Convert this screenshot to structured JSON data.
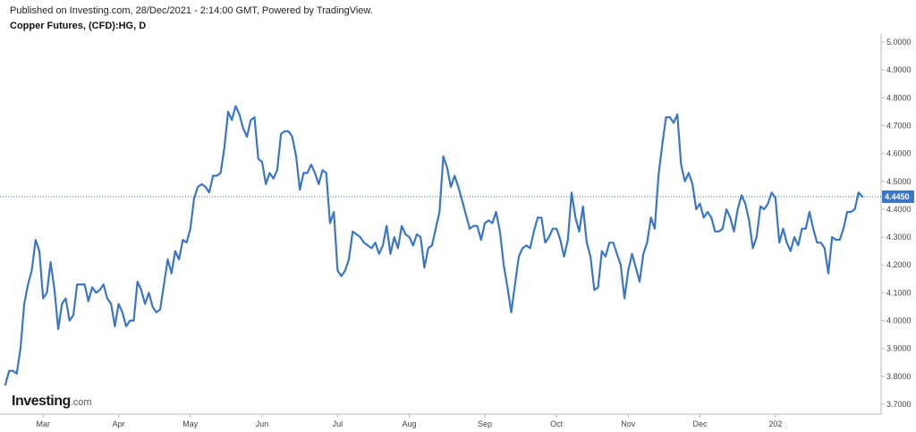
{
  "header": {
    "publisher": "Published on Investing.com, 28/Dec/2021 - 2:14:00 GMT, Powered by TradingView.",
    "instrument": "Copper Futures, (CFD):HG, D"
  },
  "logo": {
    "text": "Investing",
    "suffix": ".com"
  },
  "colors": {
    "line": "#3a76c8",
    "axis": "#b8b8b8",
    "last_label_bg": "#3a76c8"
  },
  "chart_data": {
    "type": "line",
    "title": "Copper Futures, (CFD):HG, D",
    "xlabel": "",
    "ylabel": "",
    "ylim": [
      3.65,
      5.03
    ],
    "grid": false,
    "y_ticks": [
      "5.0000",
      "4.9000",
      "4.8000",
      "4.7000",
      "4.6000",
      "4.5000",
      "4.4000",
      "4.3000",
      "4.2000",
      "4.1000",
      "4.0000",
      "3.9000",
      "3.8000",
      "3.7000"
    ],
    "x_ticks": [
      {
        "label": "Mar",
        "i": 10
      },
      {
        "label": "Apr",
        "i": 30
      },
      {
        "label": "May",
        "i": 49
      },
      {
        "label": "Jun",
        "i": 68
      },
      {
        "label": "Jul",
        "i": 88
      },
      {
        "label": "Aug",
        "i": 107
      },
      {
        "label": "Sep",
        "i": 127
      },
      {
        "label": "Oct",
        "i": 146
      },
      {
        "label": "Nov",
        "i": 165
      },
      {
        "label": "Dec",
        "i": 184
      },
      {
        "label": "202",
        "i": 204
      }
    ],
    "last_value": "4.4450",
    "series": [
      {
        "values": [
          3.77,
          3.82,
          3.82,
          3.81,
          3.9,
          4.06,
          4.13,
          4.18,
          4.29,
          4.25,
          4.08,
          4.1,
          4.21,
          4.11,
          3.97,
          4.06,
          4.08,
          4.0,
          4.02,
          4.13,
          4.13,
          4.13,
          4.07,
          4.12,
          4.1,
          4.11,
          4.13,
          4.08,
          4.06,
          3.98,
          4.06,
          4.03,
          3.98,
          4.0,
          4.0,
          4.14,
          4.11,
          4.06,
          4.1,
          4.05,
          4.03,
          4.04,
          4.13,
          4.22,
          4.17,
          4.25,
          4.22,
          4.29,
          4.28,
          4.33,
          4.44,
          4.48,
          4.49,
          4.48,
          4.46,
          4.52,
          4.52,
          4.53,
          4.62,
          4.75,
          4.72,
          4.77,
          4.74,
          4.69,
          4.66,
          4.72,
          4.73,
          4.58,
          4.57,
          4.49,
          4.53,
          4.51,
          4.54,
          4.67,
          4.68,
          4.68,
          4.66,
          4.59,
          4.47,
          4.53,
          4.53,
          4.56,
          4.53,
          4.49,
          4.54,
          4.53,
          4.35,
          4.39,
          4.18,
          4.16,
          4.18,
          4.22,
          4.32,
          4.31,
          4.3,
          4.28,
          4.27,
          4.26,
          4.28,
          4.24,
          4.27,
          4.34,
          4.24,
          4.3,
          4.26,
          4.34,
          4.31,
          4.3,
          4.27,
          4.31,
          4.3,
          4.19,
          4.26,
          4.27,
          4.33,
          4.39,
          4.59,
          4.55,
          4.48,
          4.52,
          4.48,
          4.43,
          4.38,
          4.33,
          4.34,
          4.34,
          4.29,
          4.35,
          4.36,
          4.35,
          4.39,
          4.32,
          4.2,
          4.12,
          4.03,
          4.13,
          4.23,
          4.26,
          4.27,
          4.26,
          4.32,
          4.37,
          4.37,
          4.28,
          4.3,
          4.33,
          4.33,
          4.29,
          4.23,
          4.29,
          4.46,
          4.37,
          4.32,
          4.41,
          4.28,
          4.23,
          4.11,
          4.12,
          4.25,
          4.23,
          4.28,
          4.28,
          4.24,
          4.2,
          4.08,
          4.18,
          4.24,
          4.19,
          4.14,
          4.24,
          4.28,
          4.37,
          4.33,
          4.52,
          4.63,
          4.73,
          4.73,
          4.71,
          4.74,
          4.56,
          4.5,
          4.53,
          4.49,
          4.4,
          4.42,
          4.37,
          4.39,
          4.37,
          4.32,
          4.32,
          4.33,
          4.4,
          4.37,
          4.32,
          4.4,
          4.45,
          4.42,
          4.36,
          4.26,
          4.3,
          4.41,
          4.4,
          4.42,
          4.46,
          4.44,
          4.28,
          4.33,
          4.28,
          4.25,
          4.3,
          4.27,
          4.33,
          4.33,
          4.39,
          4.33,
          4.28,
          4.28,
          4.26,
          4.17,
          4.3,
          4.29,
          4.29,
          4.33,
          4.39,
          4.39,
          4.4,
          4.46,
          4.445
        ]
      }
    ]
  }
}
